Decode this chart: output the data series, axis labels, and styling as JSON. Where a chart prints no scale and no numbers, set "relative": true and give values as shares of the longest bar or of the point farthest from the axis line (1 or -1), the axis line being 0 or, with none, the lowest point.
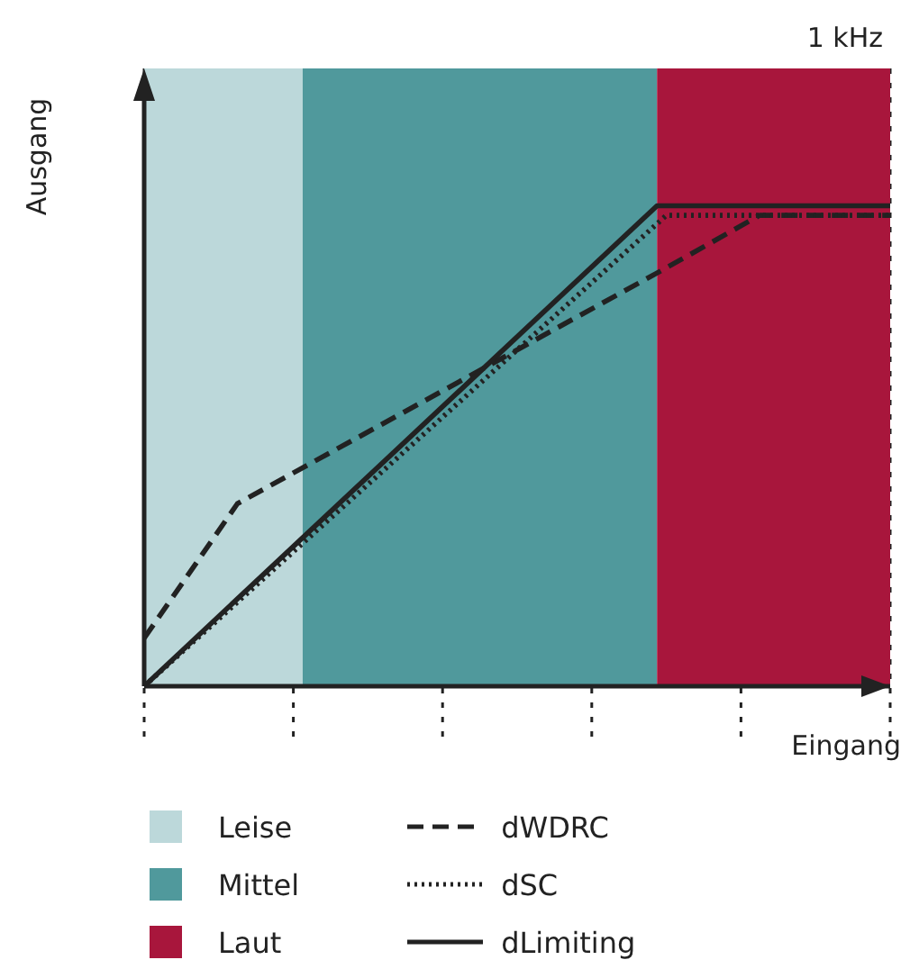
{
  "chart_data": {
    "type": "line",
    "title": "1 kHz",
    "xlabel": "Eingang",
    "ylabel": "Ausgang",
    "relative": true,
    "categories": [
      null,
      null,
      null,
      null,
      null,
      null,
      null,
      null,
      null,
      null,
      null,
      null,
      null,
      null,
      null,
      null,
      null,
      null,
      null,
      null,
      null,
      null,
      null,
      null,
      null,
      null,
      null,
      null,
      null,
      null,
      null,
      null,
      null,
      null,
      null,
      null,
      null,
      null,
      null,
      null,
      null,
      null,
      null,
      null,
      null,
      null,
      null,
      null,
      null,
      null,
      null,
      null,
      null,
      null,
      null,
      null,
      null,
      null,
      null,
      null,
      null,
      null,
      null,
      null,
      null,
      null,
      null,
      null,
      null,
      null,
      null,
      null,
      null,
      null,
      null,
      null,
      null,
      null,
      null,
      null,
      null
    ],
    "grid": "x",
    "legend": "bottom",
    "marker": "none",
    "annotations": [
      "Leise",
      "Mittel",
      "Laut"
    ],
    "series": [
      {
        "name": "dWDRC",
        "color": "#222222",
        "line_style": "dashed",
        "values": [
          0.1,
          null,
          null,
          null,
          null,
          null,
          null,
          null,
          null,
          null,
          0.38,
          null,
          null,
          null,
          null,
          null,
          null,
          null,
          null,
          null,
          null,
          null,
          null,
          null,
          null,
          null,
          null,
          null,
          null,
          null,
          null,
          null,
          null,
          null,
          null,
          null,
          null,
          null,
          null,
          null,
          null,
          null,
          null,
          null,
          null,
          null,
          null,
          null,
          null,
          null,
          null,
          null,
          null,
          null,
          null,
          0.86,
          null,
          null,
          null,
          null,
          null,
          null,
          null,
          null,
          null,
          null,
          0.98,
          null,
          null,
          null,
          null,
          null,
          null,
          null,
          null,
          null,
          null,
          null,
          null,
          null,
          0.98
        ]
      },
      {
        "name": "dSC",
        "color": "#222222",
        "line_style": "dotted",
        "values": [
          0,
          null,
          null,
          null,
          null,
          null,
          null,
          null,
          null,
          null,
          null,
          null,
          null,
          null,
          null,
          null,
          null,
          null,
          null,
          null,
          null,
          null,
          null,
          null,
          null,
          null,
          null,
          null,
          null,
          null,
          null,
          null,
          null,
          null,
          null,
          null,
          null,
          null,
          null,
          null,
          null,
          null,
          null,
          null,
          null,
          null,
          null,
          null,
          null,
          null,
          null,
          null,
          null,
          null,
          null,
          null,
          0.98,
          null,
          null,
          null,
          null,
          null,
          null,
          null,
          null,
          null,
          null,
          null,
          null,
          null,
          null,
          null,
          null,
          null,
          null,
          null,
          null,
          null,
          null,
          null,
          0.98
        ]
      },
      {
        "name": "dLimiting",
        "color": "#222222",
        "line_style": "solid",
        "values": [
          0,
          null,
          null,
          null,
          null,
          null,
          null,
          null,
          null,
          null,
          null,
          null,
          null,
          null,
          null,
          null,
          null,
          null,
          null,
          null,
          null,
          null,
          null,
          null,
          null,
          null,
          null,
          null,
          null,
          null,
          null,
          null,
          null,
          null,
          null,
          null,
          null,
          null,
          null,
          null,
          null,
          null,
          null,
          null,
          null,
          null,
          null,
          null,
          null,
          null,
          null,
          null,
          null,
          null,
          null,
          1,
          null,
          null,
          null,
          null,
          null,
          null,
          null,
          null,
          null,
          null,
          null,
          null,
          null,
          null,
          null,
          null,
          null,
          null,
          null,
          null,
          null,
          null,
          null,
          null,
          1
        ]
      }
    ]
  }
}
